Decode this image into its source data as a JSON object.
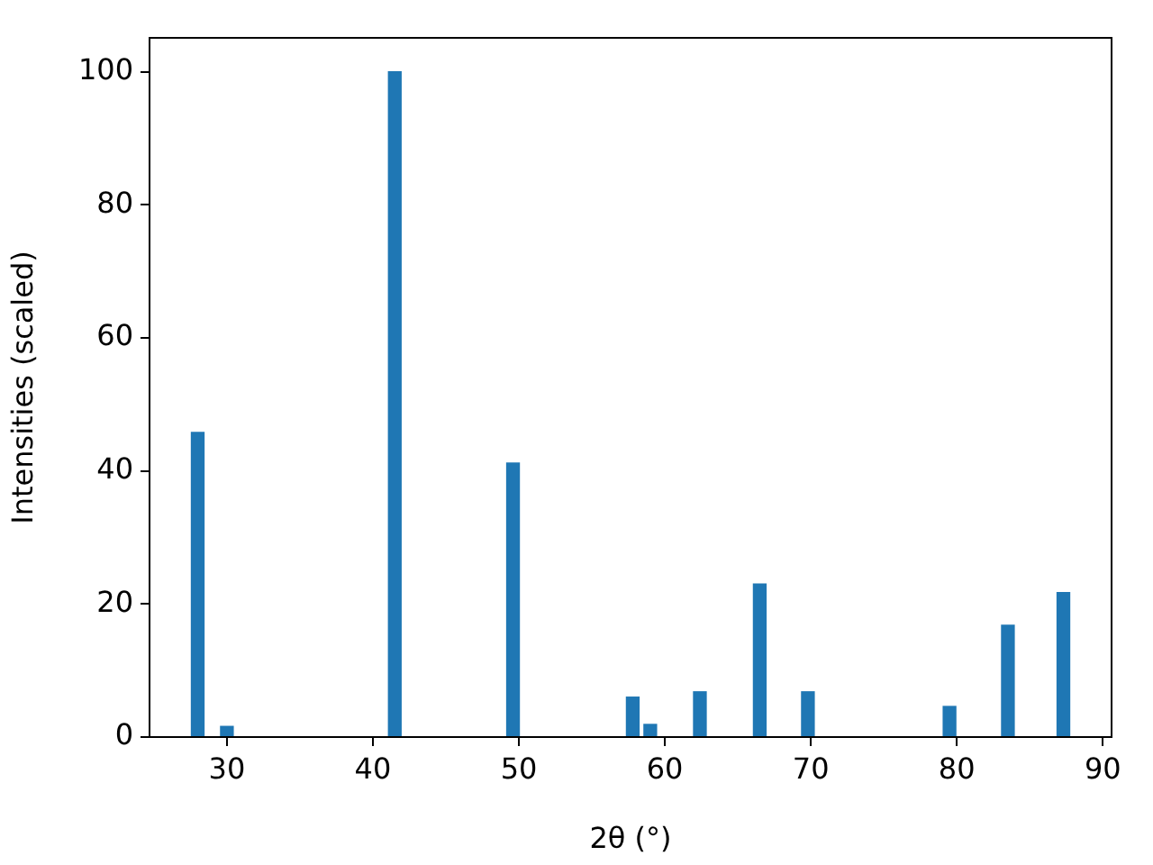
{
  "chart_data": {
    "type": "bar",
    "xlabel": "2θ (°)",
    "ylabel": "Intensities (scaled)",
    "x": [
      28.0,
      30.0,
      41.5,
      49.6,
      57.8,
      59.0,
      62.4,
      66.5,
      69.8,
      79.5,
      83.5,
      87.3
    ],
    "values": [
      45.8,
      1.6,
      100,
      41.2,
      6.0,
      1.9,
      6.8,
      23.0,
      6.8,
      4.6,
      16.8,
      21.7
    ],
    "color": "#1f77b4",
    "xlim": [
      24.7,
      90.6
    ],
    "xticks": [
      30,
      40,
      50,
      60,
      70,
      80,
      90
    ],
    "ylim": [
      0,
      105.1
    ],
    "yticks": [
      0,
      20,
      40,
      60,
      80,
      100
    ]
  }
}
